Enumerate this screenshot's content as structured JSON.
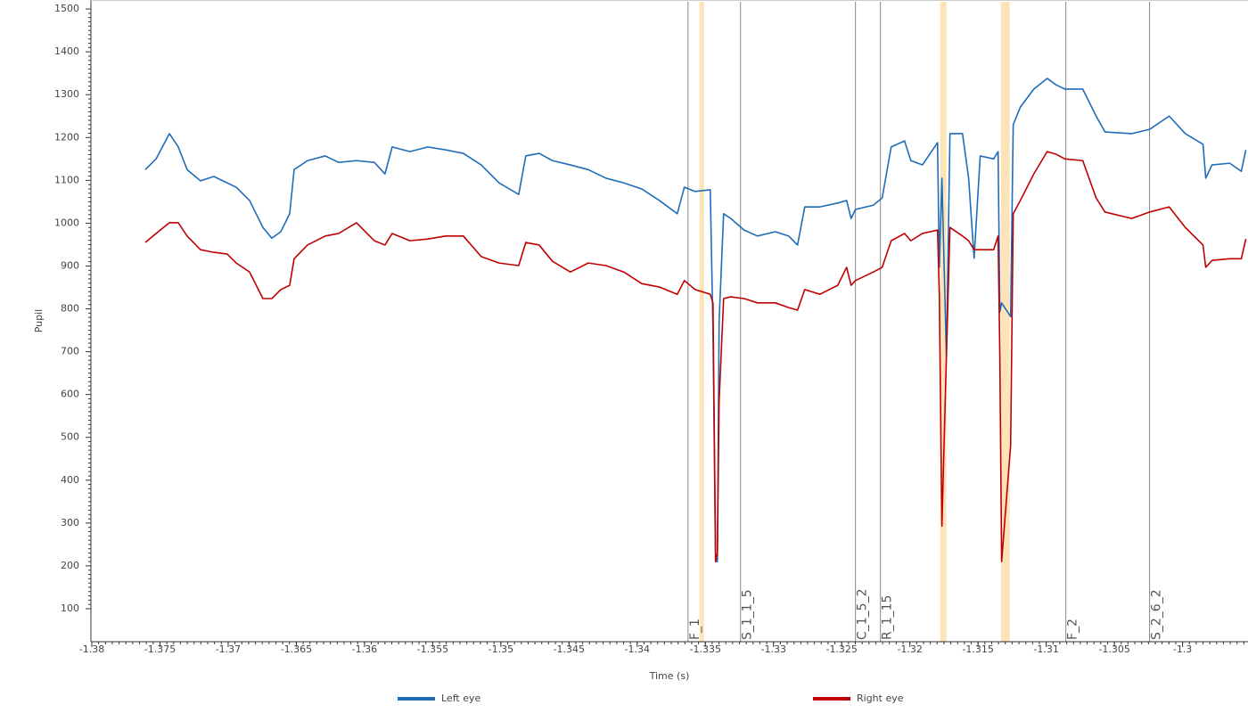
{
  "chart_data": {
    "type": "line",
    "x_label": "Time (s)",
    "y_label": "Pupil",
    "xlim": [
      -1.38,
      -1.2952
    ],
    "ylim": [
      23,
      1521
    ],
    "xticks": [
      -1.38,
      -1.375,
      -1.37,
      -1.365,
      -1.36,
      -1.355,
      -1.35,
      -1.345,
      -1.34,
      -1.335,
      -1.33,
      -1.325,
      -1.32,
      -1.315,
      -1.31,
      -1.305,
      -1.3
    ],
    "yticks": [
      100,
      200,
      300,
      400,
      500,
      600,
      700,
      800,
      900,
      1000,
      1100,
      1200,
      1300,
      1400,
      1500
    ],
    "grid": false,
    "legend": "bottom",
    "x": [
      -1.37608,
      -1.37529,
      -1.37431,
      -1.37366,
      -1.37301,
      -1.37203,
      -1.37105,
      -1.37007,
      -1.36941,
      -1.36843,
      -1.36745,
      -1.3668,
      -1.36614,
      -1.36549,
      -1.36516,
      -1.36418,
      -1.36288,
      -1.3619,
      -1.36059,
      -1.35928,
      -1.3585,
      -1.35797,
      -1.35667,
      -1.35536,
      -1.35405,
      -1.35275,
      -1.35144,
      -1.35013,
      -1.34869,
      -1.34817,
      -1.34719,
      -1.34621,
      -1.3449,
      -1.34359,
      -1.34229,
      -1.34098,
      -1.33967,
      -1.33837,
      -1.33706,
      -1.33654,
      -1.33575,
      -1.33464,
      -1.33444,
      -1.33425,
      -1.33412,
      -1.33399,
      -1.33366,
      -1.33314,
      -1.33216,
      -1.33118,
      -1.32987,
      -1.32889,
      -1.32824,
      -1.32771,
      -1.3266,
      -1.32529,
      -1.32464,
      -1.32431,
      -1.32399,
      -1.32268,
      -1.32203,
      -1.32137,
      -1.32039,
      -1.31993,
      -1.31908,
      -1.31797,
      -1.31784,
      -1.31765,
      -1.31732,
      -1.31706,
      -1.31614,
      -1.31569,
      -1.31529,
      -1.31484,
      -1.31386,
      -1.31353,
      -1.3134,
      -1.31327,
      -1.31261,
      -1.31242,
      -1.3119,
      -1.31091,
      -1.30993,
      -1.30928,
      -1.30863,
      -1.30732,
      -1.30634,
      -1.30569,
      -1.30373,
      -1.30242,
      -1.30098,
      -1.2998,
      -1.2985,
      -1.2983,
      -1.29784,
      -1.29654,
      -1.29569,
      -1.29536
    ],
    "series": [
      {
        "name": "Left eye",
        "color": "#1f6cb8",
        "values": [
          1125,
          1150,
          1209,
          1178,
          1125,
          1099,
          1109,
          1094,
          1084,
          1053,
          990,
          965,
          980,
          1022,
          1125,
          1146,
          1157,
          1142,
          1146,
          1142,
          1115,
          1178,
          1167,
          1178,
          1171,
          1163,
          1136,
          1094,
          1067,
          1157,
          1163,
          1146,
          1136,
          1125,
          1105,
          1094,
          1080,
          1053,
          1022,
          1084,
          1074,
          1078,
          751,
          210,
          210,
          772,
          1022,
          1011,
          984,
          970,
          980,
          970,
          949,
          1038,
          1038,
          1047,
          1053,
          1011,
          1032,
          1042,
          1059,
          1178,
          1192,
          1146,
          1136,
          1188,
          897,
          1105,
          689,
          1209,
          1209,
          1105,
          918,
          1157,
          1150,
          1167,
          793,
          814,
          782,
          1230,
          1271,
          1313,
          1338,
          1323,
          1313,
          1313,
          1250,
          1213,
          1209,
          1219,
          1250,
          1209,
          1184,
          1105,
          1136,
          1140,
          1121,
          1171
        ]
      },
      {
        "name": "Right eye",
        "color": "#c00000",
        "values": [
          955,
          976,
          1001,
          1001,
          970,
          938,
          932,
          928,
          907,
          886,
          824,
          824,
          845,
          855,
          917,
          949,
          970,
          976,
          1001,
          959,
          949,
          976,
          959,
          963,
          970,
          970,
          922,
          907,
          901,
          955,
          949,
          911,
          886,
          907,
          901,
          886,
          859,
          851,
          834,
          866,
          845,
          834,
          814,
          210,
          231,
          585,
          824,
          828,
          824,
          814,
          814,
          803,
          797,
          845,
          834,
          855,
          897,
          855,
          866,
          886,
          897,
          959,
          976,
          959,
          976,
          984,
          834,
          293,
          689,
          990,
          970,
          959,
          938,
          938,
          938,
          970,
          689,
          210,
          481,
          1022,
          1053,
          1115,
          1167,
          1161,
          1150,
          1146,
          1059,
          1026,
          1011,
          1026,
          1038,
          990,
          949,
          897,
          913,
          917,
          917,
          963
        ]
      }
    ],
    "events": [
      {
        "name": "F_1",
        "x": -1.33627
      },
      {
        "name": "S_1_1_5",
        "x": -1.33242
      },
      {
        "name": "C_1_5_2",
        "x": -1.32399
      },
      {
        "name": "R_1_15",
        "x": -1.32216
      },
      {
        "name": "F_2",
        "x": -1.30856
      },
      {
        "name": "S_2_6_2",
        "x": -1.30242
      }
    ],
    "blink_color": "#fde3b8",
    "blinks": [
      {
        "start": -1.33543,
        "end": -1.3351
      },
      {
        "start": -1.31778,
        "end": -1.31732
      },
      {
        "start": -1.31333,
        "end": -1.31268
      }
    ]
  }
}
